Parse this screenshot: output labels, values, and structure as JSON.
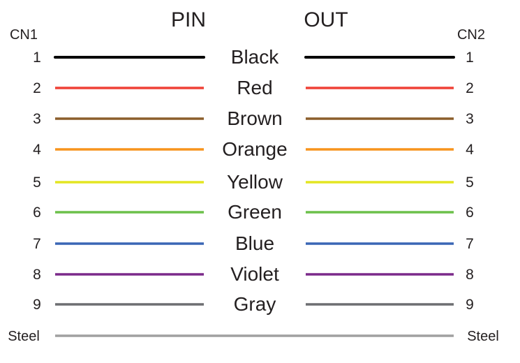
{
  "header": {
    "left": "PIN",
    "right": "OUT"
  },
  "connectors": {
    "left": "CN1",
    "right": "CN2"
  },
  "wires": [
    {
      "pin": "1",
      "label": "Black",
      "color": "#000000"
    },
    {
      "pin": "2",
      "label": "Red",
      "color": "#ef4136"
    },
    {
      "pin": "3",
      "label": "Brown",
      "color": "#8b5e2b"
    },
    {
      "pin": "4",
      "label": "Orange",
      "color": "#f7941d"
    },
    {
      "pin": "5",
      "label": "Yellow",
      "color": "#e4e622"
    },
    {
      "pin": "6",
      "label": "Green",
      "color": "#6cc04a"
    },
    {
      "pin": "7",
      "label": "Blue",
      "color": "#3a66b5"
    },
    {
      "pin": "8",
      "label": "Violet",
      "color": "#7b2a8a"
    },
    {
      "pin": "9",
      "label": "Gray",
      "color": "#6d6e71"
    }
  ],
  "steel": {
    "label": "Steel",
    "color": "#a0a0a0"
  }
}
